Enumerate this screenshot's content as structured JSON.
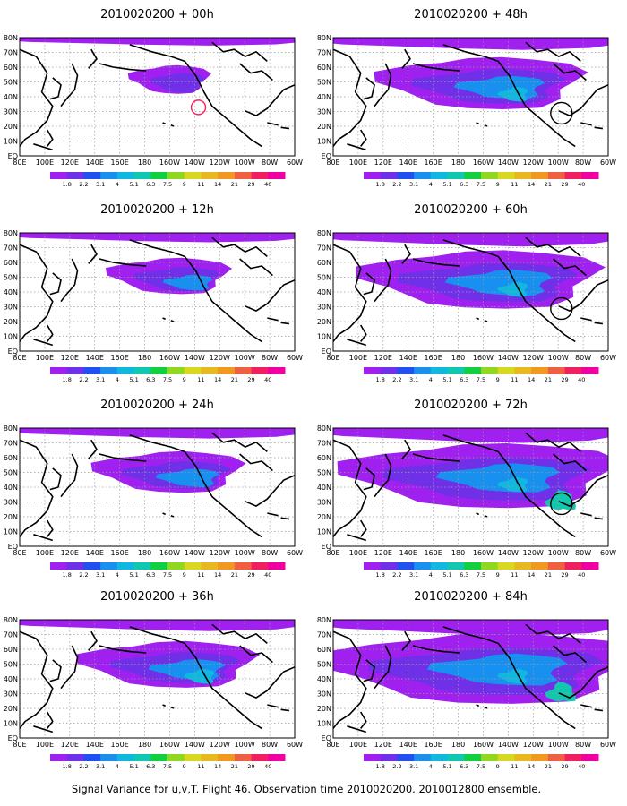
{
  "panels": [
    {
      "title": "2010020200 + 00h",
      "spread": 0.0,
      "hot": 0,
      "circle": "red"
    },
    {
      "title": "2010020200 + 48h",
      "spread": 0.55,
      "hot": 1,
      "circle": "black"
    },
    {
      "title": "2010020200 + 12h",
      "spread": 0.18,
      "hot": 0,
      "circle": ""
    },
    {
      "title": "2010020200 + 60h",
      "spread": 0.7,
      "hot": 1,
      "circle": "black"
    },
    {
      "title": "2010020200 + 24h",
      "spread": 0.3,
      "hot": 0,
      "circle": ""
    },
    {
      "title": "2010020200 + 72h",
      "spread": 0.85,
      "hot": 2,
      "circle": "black"
    },
    {
      "title": "2010020200 + 36h",
      "spread": 0.42,
      "hot": 1,
      "circle": ""
    },
    {
      "title": "2010020200 + 84h",
      "spread": 1.0,
      "hot": 2,
      "circle": ""
    }
  ],
  "lat_labels": [
    "80N",
    "70N",
    "60N",
    "50N",
    "40N",
    "30N",
    "20N",
    "10N",
    "EQ"
  ],
  "lon_labels": [
    "80E",
    "100E",
    "120E",
    "140E",
    "160E",
    "180",
    "160W",
    "140W",
    "120W",
    "100W",
    "80W",
    "60W"
  ],
  "colorbar": {
    "labels": [
      "1.8",
      "2.2",
      "3.1",
      "4",
      "5.1",
      "6.3",
      "7.5",
      "9",
      "11",
      "14",
      "21",
      "29",
      "40"
    ],
    "colors": [
      "#a020f0",
      "#7030e8",
      "#2050f0",
      "#1890f0",
      "#10b8e0",
      "#10c8b0",
      "#10d040",
      "#90d820",
      "#d8d820",
      "#e8b820",
      "#f09820",
      "#f06040",
      "#f02060",
      "#f000a0"
    ]
  },
  "caption": "Signal Variance for u,v,T. Flight 46. Observation time 2010020200. 2010012800 ensemble."
}
